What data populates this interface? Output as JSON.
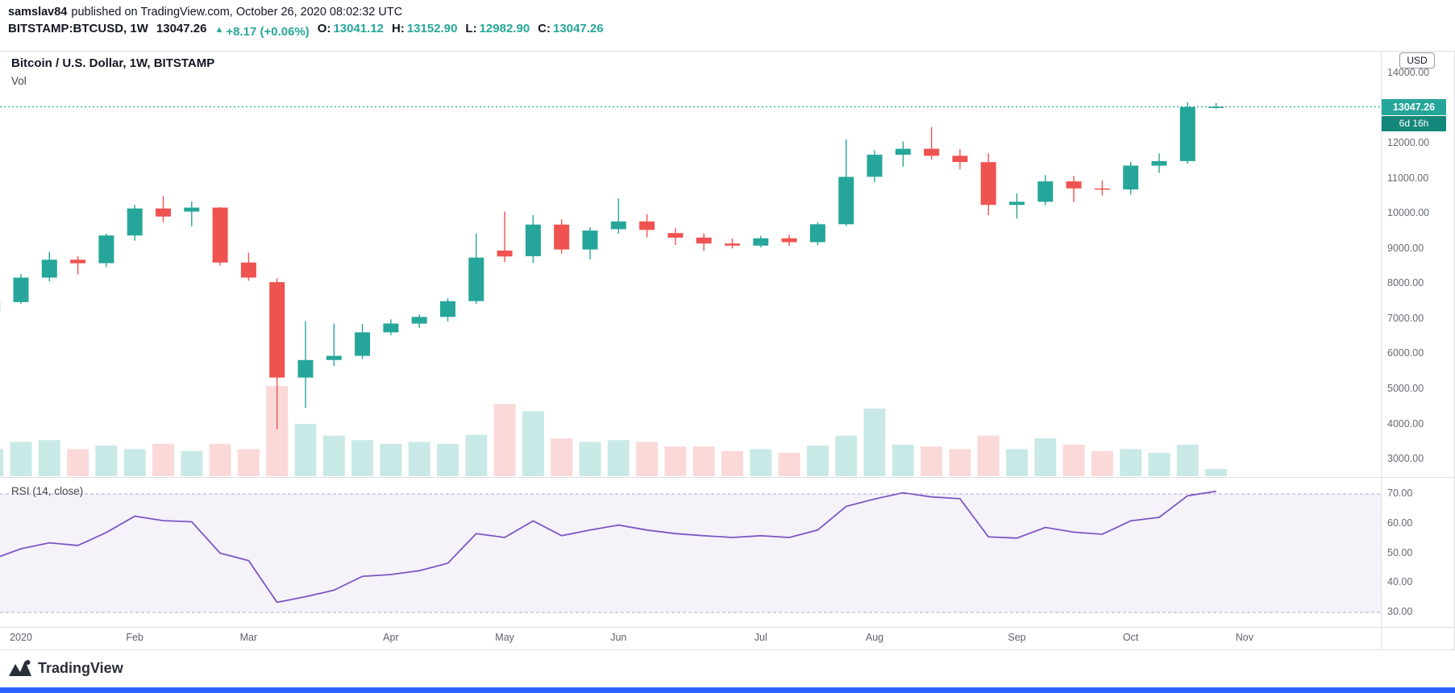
{
  "header": {
    "publisher": "samslav84",
    "publish_info": "published on TradingView.com, October 26, 2020 08:02:32 UTC",
    "symbol": {
      "name": "BITSTAMP:BTCUSD, 1W",
      "price": "13047.26",
      "arrow": "▲",
      "change": "+8.17 (+0.06%)",
      "o_label": "O:",
      "open": "13041.12",
      "h_label": "H:",
      "high": "13152.90",
      "l_label": "L:",
      "low": "12982.90",
      "c_label": "C:",
      "close": "13047.26"
    }
  },
  "legend": {
    "main_title": "Bitcoin / U.S. Dollar, 1W, BITSTAMP",
    "volume_label": "Vol",
    "rsi_label": "RSI (14, close)"
  },
  "price_axis": {
    "currency_button": "USD",
    "labels": [
      "14000.00",
      "13000.00",
      "12000.00",
      "11000.00",
      "10000.00",
      "9000.00",
      "8000.00",
      "7000.00",
      "6000.00",
      "5000.00",
      "4000.00",
      "3000.00"
    ],
    "price_badge": "13047.26",
    "countdown_badge": "6d 16h"
  },
  "rsi_axis": {
    "labels": [
      "70.00",
      "60.00",
      "50.00",
      "40.00",
      "30.00"
    ]
  },
  "watermark": "TradingView",
  "colors": {
    "up": "#26a69a",
    "down": "#ef5350",
    "up_volume": "rgba(38,166,154,0.25)",
    "down_volume": "rgba(239,83,80,0.22)",
    "rsi_line": "#7e57c2",
    "rsi_band_fill": "rgba(126,87,194,0.08)",
    "rsi_band_line": "#b2a8cc",
    "price_line": "#26a69a",
    "price_badge_bg": "#26a69a",
    "countdown_badge_bg": "#13877a",
    "bottom_bar": "#2962ff"
  },
  "chart_data": {
    "type": "candlestick",
    "title": "Bitcoin / U.S. Dollar, 1W, BITSTAMP",
    "exchange": "BITSTAMP",
    "symbol": "BTCUSD",
    "interval": "1W",
    "current_price": 13047.26,
    "price_axis_range": [
      3000,
      14250
    ],
    "rsi_indicator": "RSI (14, close)",
    "rsi_band_levels": [
      30,
      70
    ],
    "rsi_axis_range": [
      25,
      75
    ],
    "legend_position": "top-left",
    "grid": "off",
    "time_ticks": [
      {
        "label": "2020",
        "bar": 1
      },
      {
        "label": "Feb",
        "bar": 5
      },
      {
        "label": "Mar",
        "bar": 9
      },
      {
        "label": "Apr",
        "bar": 14
      },
      {
        "label": "May",
        "bar": 18
      },
      {
        "label": "Jun",
        "bar": 22
      },
      {
        "label": "Jul",
        "bar": 27
      },
      {
        "label": "Aug",
        "bar": 31
      },
      {
        "label": "Sep",
        "bar": 36
      },
      {
        "label": "Oct",
        "bar": 40
      },
      {
        "label": "Nov",
        "bar": 44
      }
    ],
    "series_format": [
      "open",
      "high",
      "low",
      "close",
      "volume_rel",
      "rsi"
    ],
    "weeks": [
      [
        7235,
        7545,
        7150,
        7483,
        30,
        48.0
      ],
      [
        7483,
        8286,
        7430,
        8180,
        38,
        51.5
      ],
      [
        8180,
        8915,
        8070,
        8690,
        40,
        53.5
      ],
      [
        8690,
        8790,
        8270,
        8590,
        30,
        52.6
      ],
      [
        8590,
        9430,
        8480,
        9380,
        34,
        57.0
      ],
      [
        9380,
        10250,
        9230,
        10150,
        30,
        62.5
      ],
      [
        10150,
        10500,
        9760,
        9920,
        36,
        61.0
      ],
      [
        10060,
        10345,
        9640,
        10175,
        28,
        60.6
      ],
      [
        10175,
        10190,
        8520,
        8610,
        36,
        50.0
      ],
      [
        8610,
        8890,
        8090,
        8180,
        30,
        47.5
      ],
      [
        8050,
        8160,
        3860,
        5330,
        100,
        33.4
      ],
      [
        5330,
        6940,
        4470,
        5830,
        58,
        35.3
      ],
      [
        5830,
        6870,
        5660,
        5950,
        45,
        37.5
      ],
      [
        5950,
        6860,
        5860,
        6620,
        40,
        42.2
      ],
      [
        6620,
        6990,
        6540,
        6870,
        36,
        42.8
      ],
      [
        6870,
        7130,
        6750,
        7060,
        38,
        44.1
      ],
      [
        7060,
        7590,
        6930,
        7510,
        36,
        46.6
      ],
      [
        7510,
        9440,
        7430,
        8750,
        46,
        56.6
      ],
      [
        8950,
        10060,
        8620,
        8780,
        80,
        55.3
      ],
      [
        8790,
        9960,
        8600,
        9690,
        72,
        60.9
      ],
      [
        9690,
        9840,
        8860,
        8980,
        42,
        55.9
      ],
      [
        8980,
        9620,
        8700,
        9520,
        38,
        57.8
      ],
      [
        9560,
        10430,
        9430,
        9780,
        40,
        59.5
      ],
      [
        9780,
        9990,
        9320,
        9540,
        38,
        57.8
      ],
      [
        9450,
        9590,
        9110,
        9320,
        33,
        56.6
      ],
      [
        9320,
        9440,
        8940,
        9150,
        33,
        55.9
      ],
      [
        9150,
        9290,
        9010,
        9090,
        28,
        55.3
      ],
      [
        9090,
        9370,
        9040,
        9300,
        30,
        55.9
      ],
      [
        9300,
        9400,
        9080,
        9190,
        26,
        55.3
      ],
      [
        9190,
        9750,
        9110,
        9700,
        34,
        57.8
      ],
      [
        9700,
        12118,
        9650,
        11050,
        45,
        65.8
      ],
      [
        11050,
        11810,
        10900,
        11680,
        75,
        68.3
      ],
      [
        11680,
        12060,
        11340,
        11850,
        35,
        70.4
      ],
      [
        11850,
        12470,
        11550,
        11650,
        33,
        69.0
      ],
      [
        11650,
        11840,
        11270,
        11470,
        30,
        68.4
      ],
      [
        11470,
        11720,
        9960,
        10250,
        45,
        55.5
      ],
      [
        10250,
        10580,
        9860,
        10340,
        30,
        55.1
      ],
      [
        10340,
        11100,
        10240,
        10920,
        42,
        58.7
      ],
      [
        10920,
        11080,
        10330,
        10720,
        35,
        57.1
      ],
      [
        10720,
        10950,
        10520,
        10690,
        28,
        56.4
      ],
      [
        10690,
        11480,
        10550,
        11370,
        30,
        60.9
      ],
      [
        11370,
        11720,
        11160,
        11500,
        26,
        62.1
      ],
      [
        11500,
        13180,
        11420,
        13040,
        35,
        69.4
      ],
      [
        13041.12,
        13152.9,
        12982.9,
        13047.26,
        8,
        70.9
      ]
    ]
  }
}
